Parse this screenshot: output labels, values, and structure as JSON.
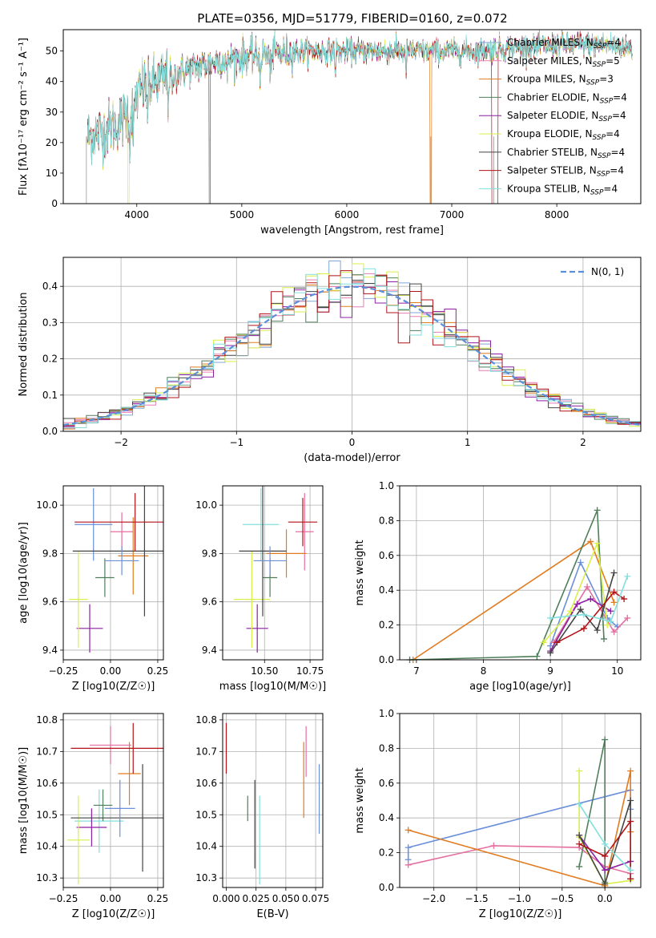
{
  "figure": {
    "title": "PLATE=0356, MJD=51779, FIBERID=0160, z=0.072"
  },
  "colors": {
    "chabrier_miles": "#7fa8d6",
    "salpeter_miles": "#e67fb3",
    "kroupa_miles": "#e07b1f",
    "chabrier_elodie": "#4f7f5a",
    "salpeter_elodie": "#8c1fa3",
    "kroupa_elodie": "#d9ef4a",
    "chabrier_stelib": "#444444",
    "salpeter_stelib": "#b31218",
    "kroupa_stelib": "#80e0dd",
    "normal_curve": "#5b8fd9",
    "models_weights": [
      "#6b8fd9",
      "#e56f9f",
      "#e07b1f",
      "#4f7f5a",
      "#8c1fa3",
      "#d9ef4a",
      "#444444",
      "#b31218",
      "#80e0dd"
    ]
  },
  "chart_data": [
    {
      "id": "spectrum",
      "type": "line",
      "title": "PLATE=0356, MJD=51779, FIBERID=0160, z=0.072",
      "xlabel": "wavelength [Angstrom, rest frame]",
      "ylabel": "Flux [fλ10⁻¹⁷ erg cm⁻² s⁻¹ A⁻¹]",
      "xlim": [
        3300,
        8800
      ],
      "ylim": [
        0,
        57
      ],
      "xticks": [
        4000,
        5000,
        6000,
        7000,
        8000
      ],
      "yticks": [
        0,
        10,
        20,
        30,
        40,
        50
      ],
      "grid": false,
      "legend_position": "top-right",
      "series": [
        {
          "name": "Chabrier MILES, N_SSP=4",
          "label": "Chabrier MILES, N",
          "sub": "SSP",
          "suffix": "=4",
          "color_key": "chabrier_miles"
        },
        {
          "name": "Salpeter MILES, N_SSP=5",
          "label": "Salpeter MILES, N",
          "sub": "SSP",
          "suffix": "=5",
          "color_key": "salpeter_miles"
        },
        {
          "name": "Kroupa MILES, N_SSP=3",
          "label": "Kroupa MILES, N",
          "sub": "SSP",
          "suffix": "=3",
          "color_key": "kroupa_miles"
        },
        {
          "name": "Chabrier ELODIE, N_SSP=4",
          "label": "Chabrier ELODIE, N",
          "sub": "SSP",
          "suffix": "=4",
          "color_key": "chabrier_elodie"
        },
        {
          "name": "Salpeter ELODIE, N_SSP=4",
          "label": "Salpeter ELODIE, N",
          "sub": "SSP",
          "suffix": "=4",
          "color_key": "salpeter_elodie"
        },
        {
          "name": "Kroupa ELODIE, N_SSP=4",
          "label": "Kroupa ELODIE, N",
          "sub": "SSP",
          "suffix": "=4",
          "color_key": "kroupa_elodie"
        },
        {
          "name": "Chabrier STELIB, N_SSP=4",
          "label": "Chabrier STELIB, N",
          "sub": "SSP",
          "suffix": "=4",
          "color_key": "chabrier_stelib"
        },
        {
          "name": "Salpeter STELIB, N_SSP=4",
          "label": "Salpeter STELIB, N",
          "sub": "SSP",
          "suffix": "=4",
          "color_key": "salpeter_stelib"
        },
        {
          "name": "Kroupa STELIB, N_SSP=4",
          "label": "Kroupa STELIB, N",
          "sub": "SSP",
          "suffix": "=4",
          "color_key": "kroupa_stelib"
        }
      ],
      "continuum_anchor_points": [
        [
          3530,
          22
        ],
        [
          3700,
          24
        ],
        [
          3850,
          27
        ],
        [
          3950,
          32
        ],
        [
          4050,
          38
        ],
        [
          4200,
          40
        ],
        [
          4400,
          43
        ],
        [
          4600,
          45
        ],
        [
          4800,
          47
        ],
        [
          5000,
          48
        ],
        [
          5300,
          49
        ],
        [
          5600,
          50
        ],
        [
          6000,
          50
        ],
        [
          6400,
          50
        ],
        [
          6800,
          50
        ],
        [
          7200,
          50
        ],
        [
          7500,
          51
        ],
        [
          8000,
          52
        ],
        [
          8500,
          52
        ],
        [
          8720,
          51
        ]
      ]
    },
    {
      "id": "residuals",
      "type": "histogram",
      "xlabel": "(data-model)/error",
      "ylabel": "Normed distribution",
      "xlim": [
        -2.5,
        2.5
      ],
      "ylim": [
        0,
        0.48
      ],
      "xticks": [
        -2,
        -1,
        0,
        1,
        2
      ],
      "yticks": [
        0.0,
        0.1,
        0.2,
        0.3,
        0.4
      ],
      "grid": true,
      "legend_position": "top-right",
      "legend": [
        {
          "label": "N(0, 1)"
        }
      ],
      "bin_width": 0.1,
      "normal_curve": {
        "mean": 0,
        "sigma": 1
      }
    },
    {
      "id": "age-vs-Z",
      "type": "scatter",
      "xlabel": "Z [log10(Z/Z☉)]",
      "ylabel": "age  [log10(age/yr)]",
      "xlim": [
        -0.25,
        0.28
      ],
      "ylim": [
        9.36,
        10.08
      ],
      "xticks": [
        -0.25,
        0.0,
        0.25
      ],
      "yticks": [
        9.4,
        9.6,
        9.8,
        10.0
      ],
      "grid": true,
      "points": [
        {
          "x": -0.09,
          "y": 9.92,
          "xerr": 0.1,
          "yerr": 0.15,
          "c": 0
        },
        {
          "x": 0.06,
          "y": 9.89,
          "xerr": 0.06,
          "yerr": 0.08,
          "c": 1
        },
        {
          "x": 0.12,
          "y": 9.79,
          "xerr": 0.08,
          "yerr": 0.16,
          "c": 2
        },
        {
          "x": -0.03,
          "y": 9.7,
          "xerr": 0.05,
          "yerr": 0.08,
          "c": 3
        },
        {
          "x": -0.11,
          "y": 9.49,
          "xerr": 0.07,
          "yerr": 0.1,
          "c": 4
        },
        {
          "x": -0.17,
          "y": 9.61,
          "xerr": 0.05,
          "yerr": 0.2,
          "c": 5
        },
        {
          "x": 0.18,
          "y": 9.81,
          "xerr": 0.38,
          "yerr": 0.27,
          "c": 6
        },
        {
          "x": 0.13,
          "y": 9.93,
          "xerr": 0.32,
          "yerr": 0.12,
          "c": 7
        },
        {
          "x": 0.06,
          "y": 9.77,
          "xerr": 0.09,
          "yerr": 0.06,
          "c": 0
        }
      ]
    },
    {
      "id": "age-vs-mass",
      "type": "scatter",
      "xlabel": "mass [log10(M/M☉)]",
      "ylabel": "",
      "xlim": [
        10.27,
        10.82
      ],
      "ylim": [
        9.36,
        10.08
      ],
      "xticks": [
        10.5,
        10.75
      ],
      "yticks": [
        9.4,
        9.6,
        9.8,
        10.0
      ],
      "grid": true,
      "points": [
        {
          "x": 10.48,
          "y": 9.92,
          "xerr": 0.1,
          "yerr": 0.15,
          "c": 8
        },
        {
          "x": 10.72,
          "y": 9.89,
          "xerr": 0.05,
          "yerr": 0.16,
          "c": 1
        },
        {
          "x": 10.62,
          "y": 9.8,
          "xerr": 0.11,
          "yerr": 0.1,
          "c": 2
        },
        {
          "x": 10.53,
          "y": 9.7,
          "xerr": 0.04,
          "yerr": 0.08,
          "c": 3
        },
        {
          "x": 10.46,
          "y": 9.49,
          "xerr": 0.06,
          "yerr": 0.1,
          "c": 4
        },
        {
          "x": 10.43,
          "y": 9.61,
          "xerr": 0.1,
          "yerr": 0.2,
          "c": 5
        },
        {
          "x": 10.49,
          "y": 9.81,
          "xerr": 0.13,
          "yerr": 0.27,
          "c": 6
        },
        {
          "x": 10.71,
          "y": 9.93,
          "xerr": 0.08,
          "yerr": 0.1,
          "c": 7
        },
        {
          "x": 10.53,
          "y": 9.77,
          "xerr": 0.09,
          "yerr": 0.06,
          "c": 0
        }
      ]
    },
    {
      "id": "weight-vs-age",
      "type": "line",
      "xlabel": "age  [log10(age/yr)]",
      "ylabel": "mass weight",
      "xlim": [
        6.75,
        10.35
      ],
      "ylim": [
        0,
        1.0
      ],
      "xticks": [
        7,
        8,
        9,
        10
      ],
      "yticks": [
        0.0,
        0.2,
        0.4,
        0.6,
        0.8,
        1.0
      ],
      "grid": true,
      "series": [
        {
          "c": 0,
          "x": [
            9.0,
            9.45,
            9.85,
            10.0
          ],
          "y": [
            0.08,
            0.56,
            0.24,
            0.19
          ]
        },
        {
          "c": 1,
          "x": [
            9.05,
            9.55,
            9.95,
            10.15
          ],
          "y": [
            0.1,
            0.42,
            0.16,
            0.24
          ]
        },
        {
          "c": 2,
          "x": [
            6.95,
            9.6,
            9.95
          ],
          "y": [
            0.0,
            0.68,
            0.33
          ]
        },
        {
          "c": 3,
          "x": [
            6.9,
            8.8,
            9.7,
            9.8
          ],
          "y": [
            0.0,
            0.02,
            0.86,
            0.12
          ]
        },
        {
          "c": 4,
          "x": [
            9.0,
            9.4,
            9.6,
            9.9
          ],
          "y": [
            0.05,
            0.32,
            0.35,
            0.28
          ]
        },
        {
          "c": 5,
          "x": [
            8.9,
            9.3,
            9.7,
            9.85
          ],
          "y": [
            0.1,
            0.28,
            0.67,
            0.2
          ]
        },
        {
          "c": 6,
          "x": [
            9.0,
            9.45,
            9.7,
            9.95
          ],
          "y": [
            0.04,
            0.29,
            0.17,
            0.5
          ]
        },
        {
          "c": 7,
          "x": [
            9.1,
            9.5,
            9.95,
            10.1
          ],
          "y": [
            0.1,
            0.18,
            0.39,
            0.35
          ]
        },
        {
          "c": 8,
          "x": [
            9.0,
            9.5,
            9.9,
            10.15
          ],
          "y": [
            0.24,
            0.26,
            0.22,
            0.48
          ]
        }
      ]
    },
    {
      "id": "mass-vs-Z",
      "type": "scatter",
      "xlabel": "Z [log10(Z/Z☉)]",
      "ylabel": "mass [log10(M/M☉)]",
      "xlim": [
        -0.25,
        0.28
      ],
      "ylim": [
        10.27,
        10.82
      ],
      "xticks": [
        -0.25,
        0.0,
        0.25
      ],
      "yticks": [
        10.3,
        10.4,
        10.5,
        10.6,
        10.7,
        10.8
      ],
      "grid": true,
      "points": [
        {
          "x": -0.06,
          "y": 10.48,
          "xerr": 0.13,
          "yerr": 0.1,
          "c": 8
        },
        {
          "x": 0.0,
          "y": 10.72,
          "xerr": 0.11,
          "yerr": 0.06,
          "c": 1
        },
        {
          "x": 0.1,
          "y": 10.63,
          "xerr": 0.06,
          "yerr": 0.1,
          "c": 2
        },
        {
          "x": -0.04,
          "y": 10.53,
          "xerr": 0.05,
          "yerr": 0.05,
          "c": 3
        },
        {
          "x": -0.1,
          "y": 10.46,
          "xerr": 0.08,
          "yerr": 0.06,
          "c": 4
        },
        {
          "x": -0.17,
          "y": 10.42,
          "xerr": 0.06,
          "yerr": 0.14,
          "c": 5
        },
        {
          "x": 0.17,
          "y": 10.49,
          "xerr": 0.38,
          "yerr": 0.17,
          "c": 6
        },
        {
          "x": 0.12,
          "y": 10.71,
          "xerr": 0.33,
          "yerr": 0.08,
          "c": 7
        },
        {
          "x": 0.05,
          "y": 10.52,
          "xerr": 0.08,
          "yerr": 0.09,
          "c": 0
        }
      ]
    },
    {
      "id": "mass-vs-EBV",
      "type": "scatter",
      "xlabel": "E(B-V)",
      "ylabel": "",
      "xlim": [
        -0.003,
        0.081
      ],
      "ylim": [
        10.27,
        10.82
      ],
      "xticks": [
        0.0,
        0.025,
        0.05,
        0.075
      ],
      "yticks": [
        10.3,
        10.4,
        10.5,
        10.6,
        10.7,
        10.8
      ],
      "grid": true,
      "points": [
        {
          "x": 0.0,
          "y": 10.71,
          "xerr": 0.0,
          "yerr": 0.08,
          "c": 7
        },
        {
          "x": 0.018,
          "y": 10.52,
          "xerr": 0.0,
          "yerr": 0.04,
          "c": 3
        },
        {
          "x": 0.024,
          "y": 10.47,
          "xerr": 0.0,
          "yerr": 0.14,
          "c": 6
        },
        {
          "x": 0.028,
          "y": 10.42,
          "xerr": 0.0,
          "yerr": 0.14,
          "c": 8
        },
        {
          "x": 0.065,
          "y": 10.61,
          "xerr": 0.0,
          "yerr": 0.12,
          "c": 2
        },
        {
          "x": 0.067,
          "y": 10.7,
          "xerr": 0.0,
          "yerr": 0.08,
          "c": 1
        },
        {
          "x": 0.078,
          "y": 10.55,
          "xerr": 0.0,
          "yerr": 0.11,
          "c": 0
        }
      ]
    },
    {
      "id": "weight-vs-Z",
      "type": "line",
      "xlabel": "Z [log10(Z/Z☉)]",
      "ylabel": "mass weight",
      "xlim": [
        -2.4,
        0.42
      ],
      "ylim": [
        0,
        1.0
      ],
      "xticks": [
        -2.0,
        -1.5,
        -1.0,
        -0.5,
        0.0
      ],
      "yticks": [
        0.0,
        0.2,
        0.4,
        0.6,
        0.8,
        1.0
      ],
      "grid": true,
      "series": [
        {
          "c": 0,
          "x": [
            -2.3,
            -2.3,
            0.3,
            0.3
          ],
          "y": [
            0.16,
            0.23,
            0.56,
            0.45
          ]
        },
        {
          "c": 1,
          "x": [
            -2.3,
            -1.3,
            -0.3,
            0.0,
            0.3
          ],
          "y": [
            0.13,
            0.24,
            0.23,
            0.12,
            0.08
          ]
        },
        {
          "c": 2,
          "x": [
            -2.3,
            0.0,
            0.3,
            0.3
          ],
          "y": [
            0.33,
            0.01,
            0.67,
            0.32
          ]
        },
        {
          "c": 3,
          "x": [
            -0.3,
            0.0,
            0.0
          ],
          "y": [
            0.12,
            0.85,
            0.03
          ]
        },
        {
          "c": 4,
          "x": [
            -0.3,
            0.0,
            0.3
          ],
          "y": [
            0.3,
            0.1,
            0.15
          ]
        },
        {
          "c": 5,
          "x": [
            -0.3,
            -0.3,
            0.0,
            0.3
          ],
          "y": [
            0.67,
            0.29,
            0.02,
            0.04
          ]
        },
        {
          "c": 6,
          "x": [
            -0.3,
            0.0,
            0.3,
            0.3
          ],
          "y": [
            0.3,
            0.02,
            0.5,
            0.05
          ]
        },
        {
          "c": 7,
          "x": [
            -0.3,
            0.0,
            0.3,
            0.3
          ],
          "y": [
            0.25,
            0.18,
            0.38,
            0.05
          ]
        },
        {
          "c": 8,
          "x": [
            -0.3,
            0.0,
            0.3
          ],
          "y": [
            0.48,
            0.25,
            0.1
          ]
        }
      ]
    }
  ]
}
